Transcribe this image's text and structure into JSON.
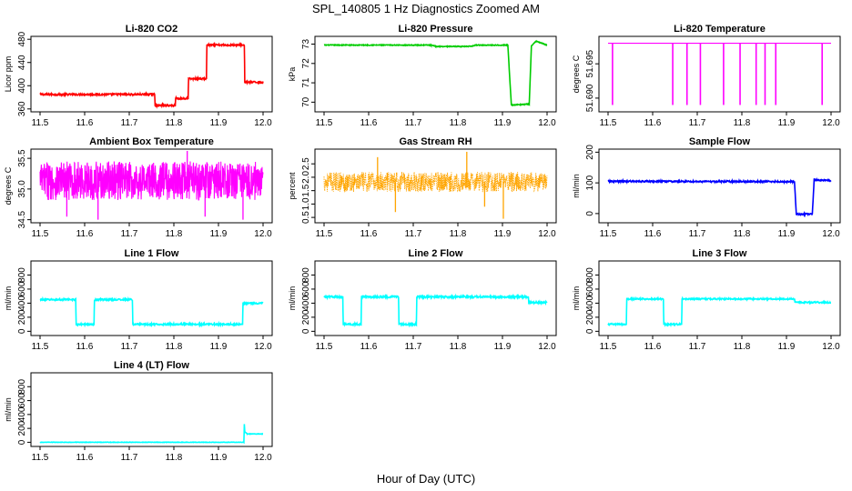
{
  "figure": {
    "title": "SPL_140805  1 Hz Diagnostics Zoomed AM",
    "xlabel": "Hour of Day (UTC)"
  },
  "chart_data": [
    {
      "type": "line",
      "title": "Li-820 CO2",
      "ylabel": "Licor ppm",
      "color": "#ff0000",
      "xlim": [
        11.5,
        12.0
      ],
      "xticks": [
        "11.5",
        "11.6",
        "11.7",
        "11.8",
        "11.9",
        "12.0"
      ],
      "ylim": [
        355,
        485
      ],
      "yticks": [
        360,
        400,
        440,
        480
      ],
      "series": [
        {
          "x": [
            11.5,
            11.757,
            11.758,
            11.803,
            11.804,
            11.832,
            11.833,
            11.873,
            11.874,
            11.958,
            11.959,
            12.0
          ],
          "y": [
            385,
            385,
            366,
            366,
            378,
            378,
            412,
            412,
            470,
            470,
            406,
            406
          ],
          "noise": 1.5
        }
      ]
    },
    {
      "type": "line",
      "title": "Li-820 Pressure",
      "ylabel": "kPa",
      "color": "#00cc00",
      "xlim": [
        11.5,
        12.0
      ],
      "xticks": [
        "11.5",
        "11.6",
        "11.7",
        "11.8",
        "11.9",
        "12.0"
      ],
      "ylim": [
        69.5,
        73.4
      ],
      "yticks": [
        70,
        71,
        72,
        73
      ],
      "series": [
        {
          "x": [
            11.5,
            11.74,
            11.75,
            11.83,
            11.84,
            11.912,
            11.92,
            11.96,
            11.965,
            11.975,
            12.0
          ],
          "y": [
            72.95,
            72.95,
            72.88,
            72.88,
            72.95,
            72.95,
            69.85,
            69.9,
            72.9,
            73.15,
            72.95
          ],
          "noise": 0.02
        }
      ]
    },
    {
      "type": "line",
      "title": "Li-820 Temperature",
      "ylabel": "degrees C",
      "color": "#ff00ff",
      "xlim": [
        11.5,
        12.0
      ],
      "xticks": [
        "11.5",
        "11.6",
        "11.7",
        "11.8",
        "11.9",
        "12.0"
      ],
      "ylim": [
        51.688,
        51.699
      ],
      "yticks": [
        "51.690",
        "51.695"
      ],
      "series": [
        {
          "baseline": 51.698,
          "spikes": [
            11.51,
            11.645,
            11.677,
            11.707,
            11.759,
            11.796,
            11.832,
            11.852,
            11.876,
            11.98
          ],
          "spike_value": 51.689
        }
      ]
    },
    {
      "type": "line",
      "title": "Ambient Box Temperature",
      "ylabel": "degrees C",
      "color": "#ff00ff",
      "xlim": [
        11.5,
        12.0
      ],
      "xticks": [
        "11.5",
        "11.6",
        "11.7",
        "11.8",
        "11.9",
        "12.0"
      ],
      "ylim": [
        34.45,
        35.65
      ],
      "yticks": [
        "34.5",
        "35.0",
        "35.5"
      ],
      "series": [
        {
          "band": [
            34.82,
            35.45
          ],
          "outliers": [
            [
              11.83,
              35.62
            ],
            [
              11.63,
              34.5
            ],
            [
              11.955,
              34.5
            ],
            [
              11.56,
              34.55
            ],
            [
              11.87,
              34.55
            ]
          ]
        }
      ]
    },
    {
      "type": "scatter",
      "title": "Gas Stream RH",
      "ylabel": "percent",
      "color": "#ffa500",
      "xlim": [
        11.5,
        12.0
      ],
      "xticks": [
        "11.5",
        "11.6",
        "11.7",
        "11.8",
        "11.9",
        "12.0"
      ],
      "ylim": [
        0.3,
        3.05
      ],
      "yticks": [
        "0.5",
        "1.0",
        "1.5",
        "2.0",
        "2.5"
      ],
      "series": [
        {
          "band": [
            1.45,
            2.2
          ],
          "outliers": [
            [
              11.902,
              0.45
            ],
            [
              11.66,
              0.7
            ],
            [
              11.86,
              0.9
            ],
            [
              11.82,
              2.95
            ],
            [
              11.62,
              2.75
            ]
          ]
        }
      ]
    },
    {
      "type": "line",
      "title": "Sample Flow",
      "ylabel": "ml/min",
      "color": "#0000ff",
      "xlim": [
        11.5,
        12.0
      ],
      "xticks": [
        "11.5",
        "11.6",
        "11.7",
        "11.8",
        "11.9",
        "12.0"
      ],
      "ylim": [
        -30,
        210
      ],
      "yticks": [
        0,
        100,
        200
      ],
      "series": [
        {
          "x": [
            11.5,
            11.918,
            11.922,
            11.958,
            11.962,
            12.0
          ],
          "y": [
            105,
            104,
            -2,
            -2,
            110,
            107
          ],
          "noise": 2.5
        }
      ]
    },
    {
      "type": "line",
      "title": "Line 1 Flow",
      "ylabel": "ml/min",
      "color": "#00ffff",
      "xlim": [
        11.5,
        12.0
      ],
      "xticks": [
        "11.5",
        "11.6",
        "11.7",
        "11.8",
        "11.9",
        "12.0"
      ],
      "ylim": [
        -60,
        1000
      ],
      "yticks": [
        0,
        200,
        400,
        600,
        800
      ],
      "series": [
        {
          "x": [
            11.5,
            11.58,
            11.581,
            11.621,
            11.622,
            11.707,
            11.708,
            11.954,
            11.955,
            12.0
          ],
          "y": [
            450,
            450,
            100,
            100,
            450,
            450,
            100,
            100,
            400,
            400
          ],
          "noise": 12
        }
      ]
    },
    {
      "type": "line",
      "title": "Line 2 Flow",
      "ylabel": "ml/min",
      "color": "#00ffff",
      "xlim": [
        11.5,
        12.0
      ],
      "xticks": [
        "11.5",
        "11.6",
        "11.7",
        "11.8",
        "11.9",
        "12.0"
      ],
      "ylim": [
        -60,
        1000
      ],
      "yticks": [
        0,
        200,
        400,
        600,
        800
      ],
      "series": [
        {
          "x": [
            11.5,
            11.542,
            11.543,
            11.583,
            11.584,
            11.667,
            11.668,
            11.707,
            11.708,
            11.958,
            11.959,
            12.0
          ],
          "y": [
            490,
            490,
            100,
            100,
            490,
            490,
            100,
            100,
            490,
            490,
            410,
            410
          ],
          "noise": 14
        }
      ]
    },
    {
      "type": "line",
      "title": "Line 3 Flow",
      "ylabel": "ml/min",
      "color": "#00ffff",
      "xlim": [
        11.5,
        12.0
      ],
      "xticks": [
        "11.5",
        "11.6",
        "11.7",
        "11.8",
        "11.9",
        "12.0"
      ],
      "ylim": [
        -60,
        1000
      ],
      "yticks": [
        0,
        200,
        400,
        600,
        800
      ],
      "series": [
        {
          "x": [
            11.5,
            11.541,
            11.542,
            11.624,
            11.625,
            11.665,
            11.666,
            11.918,
            11.919,
            12.0
          ],
          "y": [
            100,
            100,
            460,
            460,
            100,
            100,
            460,
            460,
            410,
            410
          ],
          "noise": 10
        }
      ]
    },
    {
      "type": "line",
      "title": "Line 4 (LT) Flow",
      "ylabel": "ml/min",
      "color": "#00ffff",
      "xlim": [
        11.5,
        12.0
      ],
      "xticks": [
        "11.5",
        "11.6",
        "11.7",
        "11.8",
        "11.9",
        "12.0"
      ],
      "ylim": [
        -60,
        1000
      ],
      "yticks": [
        0,
        200,
        400,
        600,
        800
      ],
      "series": [
        {
          "x": [
            11.5,
            11.957,
            11.958,
            11.959,
            11.965,
            12.0
          ],
          "y": [
            0,
            0,
            260,
            150,
            120,
            120
          ],
          "noise": 3
        }
      ]
    }
  ]
}
